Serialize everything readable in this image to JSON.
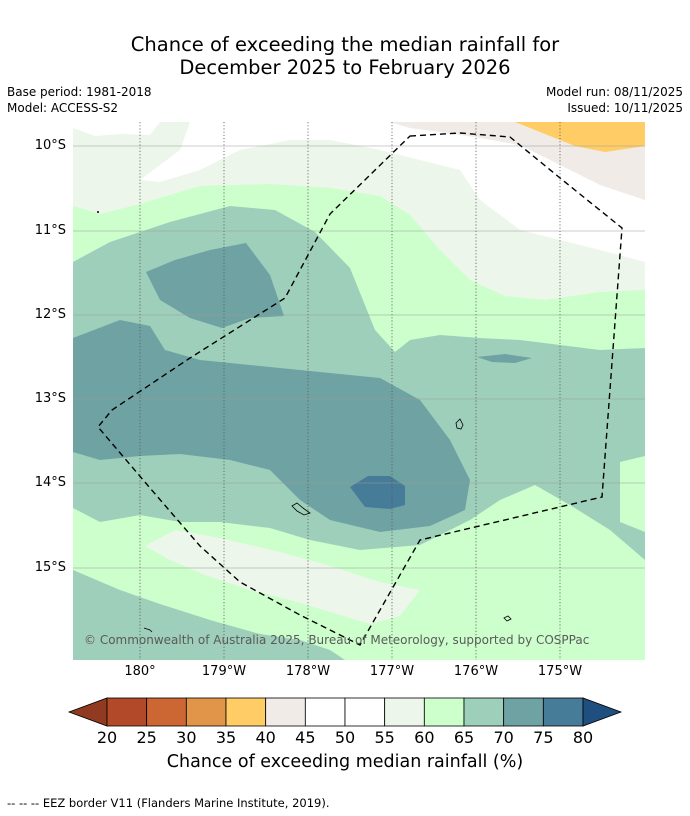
{
  "title": {
    "line1": "Chance of exceeding the median rainfall for",
    "line2": "December 2025 to February 2026"
  },
  "meta": {
    "base_period": "Base period: 1981-2018",
    "model": "Model: ACCESS-S2",
    "model_run": "Model run: 08/11/2025",
    "issued": "Issued: 10/11/2025"
  },
  "map": {
    "lat_labels": [
      "10°S",
      "11°S",
      "12°S",
      "13°S",
      "14°S",
      "15°S"
    ],
    "lon_labels": [
      "180°",
      "179°W",
      "178°W",
      "177°W",
      "176°W",
      "175°W"
    ],
    "copyright": "© Commonwealth of Australia 2025, Bureau of Meteorology, supported by COSPPac",
    "zone_colors": {
      "c40": "#f0ebe6",
      "c45": "#ffffff",
      "c55": "#ecf6ea",
      "c60": "#ccffcc",
      "c65": "#9ecfba",
      "c70": "#6fa3a3",
      "c75": "#477c99",
      "c35": "#ffcc66"
    }
  },
  "colorbar": {
    "ticks": [
      "20",
      "25",
      "30",
      "35",
      "40",
      "45",
      "50",
      "55",
      "60",
      "65",
      "70",
      "75",
      "80"
    ],
    "colors": [
      "#b24a2a",
      "#cc6633",
      "#e09548",
      "#ffcc66",
      "#f0ebe6",
      "#ffffff",
      "#ffffff",
      "#ecf6ea",
      "#ccffcc",
      "#9ecfba",
      "#6fa3a3",
      "#477c99"
    ],
    "low_extend_color": "#903a22",
    "high_extend_color": "#1f4f7f",
    "label": "Chance of exceeding median rainfall (%)"
  },
  "legend": {
    "eez": "--  --  -- EEZ border V11 (Flanders Marine Institute, 2019)."
  }
}
